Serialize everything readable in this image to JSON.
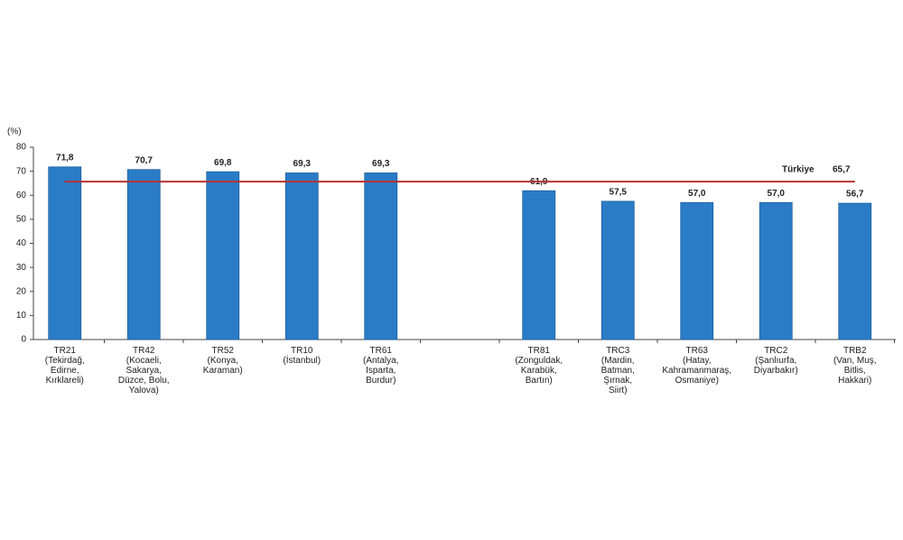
{
  "chart_data": {
    "type": "bar",
    "y_label": "(%)",
    "categories": [
      "TR21\n(Tekirdağ,\nEdirne,\nKırklareli)",
      "TR42\n(Kocaeli,\nSakarya,\nDüzce, Bolu,\nYalova)",
      "TR52\n(Konya,\nKaraman)",
      "TR10\n(İstanbul)",
      "TR61\n(Antalya,\nIsparta,\nBurdur)",
      null,
      "TR81\n(Zonguldak,\nKarabük,\nBartın)",
      "TRC3\n(Mardin,\nBatman,\nŞırnak,\nSiirt)",
      "TR63\n(Hatay,\nKahramanmaraş,\nOsmaniye)",
      "TRC2\n(Şanlıurfa,\nDiyarbakır)",
      "TRB2\n(Van, Muş,\nBitlis,\nHakkari)"
    ],
    "values": [
      71.8,
      70.7,
      69.8,
      69.3,
      69.3,
      null,
      61.9,
      57.5,
      57.0,
      57.0,
      56.7
    ],
    "value_labels": [
      "71,8",
      "70,7",
      "69,8",
      "69,3",
      "69,3",
      null,
      "61,9",
      "57,5",
      "57,0",
      "57,0",
      "56,7"
    ],
    "color": "#2a7cc7",
    "ylim": [
      0,
      80
    ],
    "yticks": [
      0,
      10,
      20,
      30,
      40,
      50,
      60,
      70,
      80
    ],
    "grid": false,
    "reference": {
      "label": "Türkiye",
      "value": 65.7,
      "value_label": "65,7",
      "color": "#b83232"
    }
  }
}
